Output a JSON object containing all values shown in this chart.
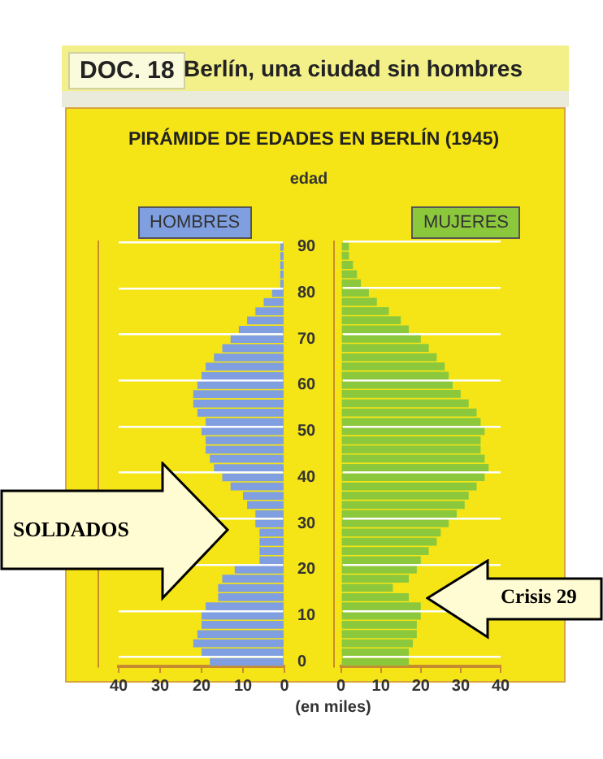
{
  "chart_data": [
    {
      "type": "bar",
      "orientation": "horizontal",
      "title": "Berlín, una ciudad sin hombres",
      "subtitle": "PIRÁMIDE DE EDADES EN BERLÍN (1945)",
      "ylabel": "edad",
      "xlabel": "(en miles)",
      "annotations": [
        "DOC. 18",
        "SOLDADOS"
      ],
      "categories": [
        "90",
        null,
        null,
        null,
        null,
        "80",
        null,
        null,
        null,
        null,
        "70",
        null,
        null,
        null,
        null,
        "60",
        null,
        null,
        null,
        null,
        "50",
        null,
        null,
        null,
        null,
        "40",
        null,
        null,
        null,
        null,
        "30",
        null,
        null,
        null,
        null,
        "20",
        null,
        null,
        null,
        null,
        "10",
        null,
        null,
        null,
        null,
        "0"
      ],
      "series": [
        {
          "name": "HOMBRES",
          "color": "#7f9fe0",
          "values": [
            1,
            1,
            1,
            1,
            1,
            3,
            5,
            7,
            9,
            11,
            13,
            15,
            17,
            19,
            20,
            21,
            22,
            22,
            21,
            19,
            20,
            19,
            19,
            18,
            17,
            15,
            13,
            10,
            9,
            7,
            7,
            6,
            6,
            6,
            6,
            12,
            15,
            16,
            16,
            19,
            20,
            20,
            21,
            22,
            20,
            18
          ]
        }
      ],
      "xlim": [
        40,
        0
      ],
      "xticks": [
        40,
        30,
        20,
        10,
        0
      ],
      "grid": "y",
      "legend": "top left"
    },
    {
      "type": "bar",
      "orientation": "horizontal",
      "annotations": [
        "Crisis 29"
      ],
      "categories": [
        "90",
        null,
        null,
        null,
        null,
        "80",
        null,
        null,
        null,
        null,
        "70",
        null,
        null,
        null,
        null,
        "60",
        null,
        null,
        null,
        null,
        "50",
        null,
        null,
        null,
        null,
        "40",
        null,
        null,
        null,
        null,
        "30",
        null,
        null,
        null,
        null,
        "20",
        null,
        null,
        null,
        null,
        "10",
        null,
        null,
        null,
        null,
        "0"
      ],
      "series": [
        {
          "name": "MUJERES",
          "color": "#8cc83c",
          "values": [
            2,
            2,
            3,
            4,
            5,
            7,
            9,
            12,
            15,
            17,
            20,
            22,
            24,
            26,
            27,
            28,
            30,
            32,
            34,
            35,
            36,
            35,
            35,
            36,
            37,
            36,
            34,
            32,
            31,
            29,
            27,
            25,
            24,
            22,
            20,
            19,
            17,
            13,
            17,
            20,
            20,
            19,
            19,
            18,
            17,
            17
          ]
        }
      ],
      "xlim": [
        0,
        40
      ],
      "xticks": [
        0,
        10,
        20,
        30,
        40
      ],
      "grid": "y",
      "legend": "top right",
      "tick_labels": "x"
    }
  ]
}
